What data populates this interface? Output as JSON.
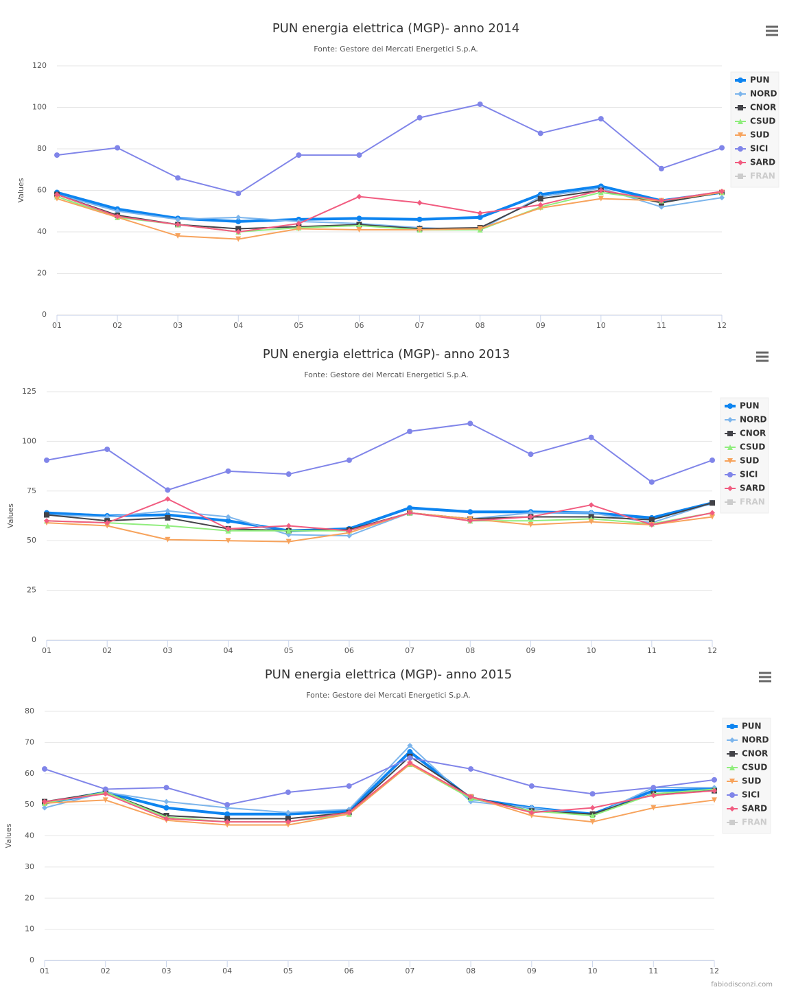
{
  "chart_data": [
    {
      "type": "line",
      "title": "PUN energia elettrica (MGP)- anno 2014",
      "subtitle": "Fonte: Gestore dei Mercati Energetici S.p.A.",
      "y_label": "Values",
      "categories": [
        "01",
        "02",
        "03",
        "04",
        "05",
        "06",
        "07",
        "08",
        "09",
        "10",
        "11",
        "12"
      ],
      "ylim": [
        0,
        120
      ],
      "yticks": [
        0,
        20,
        40,
        60,
        80,
        100,
        120
      ],
      "grid": true,
      "legend": "right",
      "series": [
        {
          "name": "PUN",
          "color": "#0d84f0",
          "marker": "circle",
          "line_width": 4,
          "values": [
            59,
            51,
            46.5,
            45,
            46,
            46.5,
            46,
            47,
            58,
            62,
            55,
            59
          ]
        },
        {
          "name": "NORD",
          "color": "#7cb5ec",
          "marker": "diamond",
          "values": [
            58,
            50,
            46,
            47,
            45,
            44,
            42,
            41,
            57,
            61,
            52,
            56.5
          ]
        },
        {
          "name": "CNOR",
          "color": "#434348",
          "marker": "square",
          "values": [
            58,
            48,
            43.5,
            41.5,
            42.5,
            43.5,
            41.5,
            42,
            56,
            60,
            54,
            59
          ]
        },
        {
          "name": "CSUD",
          "color": "#90ed7d",
          "marker": "triangle",
          "values": [
            57,
            47,
            43.5,
            40,
            42,
            43,
            41,
            41,
            52,
            59,
            55,
            59
          ]
        },
        {
          "name": "SUD",
          "color": "#f7a35c",
          "marker": "triangle-down",
          "values": [
            56,
            47,
            38,
            36.5,
            41.5,
            41,
            41,
            41.5,
            51.5,
            56,
            55,
            59
          ]
        },
        {
          "name": "SICI",
          "color": "#8085e9",
          "marker": "circle",
          "values": [
            77,
            80.5,
            66,
            58.5,
            77,
            77,
            95,
            101.5,
            87.5,
            94.5,
            70.5,
            80.5
          ]
        },
        {
          "name": "SARD",
          "color": "#f15c80",
          "marker": "diamond",
          "values": [
            58,
            47.5,
            43.5,
            40,
            44,
            57,
            54,
            49,
            53,
            60,
            55,
            59.5
          ]
        },
        {
          "name": "FRAN",
          "color": "#cccccc",
          "marker": "square",
          "visible": false,
          "values": [
            null,
            null,
            null,
            null,
            null,
            null,
            null,
            null,
            null,
            null,
            null,
            null
          ]
        }
      ]
    },
    {
      "type": "line",
      "title": "PUN energia elettrica (MGP)- anno 2013",
      "subtitle": "Fonte: Gestore dei Mercati Energetici S.p.A.",
      "y_label": "Values",
      "categories": [
        "01",
        "02",
        "03",
        "04",
        "05",
        "06",
        "07",
        "08",
        "09",
        "10",
        "11",
        "12"
      ],
      "ylim": [
        0,
        125
      ],
      "yticks": [
        0,
        25,
        50,
        75,
        100,
        125
      ],
      "grid": true,
      "legend": "right",
      "series": [
        {
          "name": "PUN",
          "color": "#0d84f0",
          "marker": "circle",
          "line_width": 4,
          "values": [
            64,
            62.5,
            63,
            60,
            55,
            56,
            66.5,
            64.5,
            64.5,
            64,
            61.5,
            69
          ]
        },
        {
          "name": "NORD",
          "color": "#7cb5ec",
          "marker": "diamond",
          "values": [
            63,
            62,
            65,
            62,
            53,
            52.5,
            64,
            61,
            64,
            64,
            59,
            69
          ]
        },
        {
          "name": "CNOR",
          "color": "#434348",
          "marker": "square",
          "values": [
            63,
            60,
            61.5,
            56,
            55,
            55.5,
            64,
            61,
            62,
            62,
            60.5,
            69
          ]
        },
        {
          "name": "CSUD",
          "color": "#90ed7d",
          "marker": "triangle",
          "values": [
            60,
            59,
            57.5,
            55,
            55,
            55,
            64,
            60,
            60,
            61,
            58.5,
            64
          ]
        },
        {
          "name": "SUD",
          "color": "#f7a35c",
          "marker": "triangle-down",
          "values": [
            59,
            57.5,
            50.5,
            50,
            49.5,
            54,
            64,
            61,
            58,
            59.5,
            58,
            62
          ]
        },
        {
          "name": "SICI",
          "color": "#8085e9",
          "marker": "circle",
          "values": [
            90.5,
            96,
            75.5,
            85,
            83.5,
            90.5,
            105,
            109,
            93.5,
            102,
            79.5,
            90.5
          ]
        },
        {
          "name": "SARD",
          "color": "#f15c80",
          "marker": "diamond",
          "values": [
            60,
            59,
            71,
            56,
            57.5,
            55,
            64,
            60,
            62,
            68,
            58,
            64
          ]
        },
        {
          "name": "FRAN",
          "color": "#cccccc",
          "marker": "square",
          "visible": false,
          "values": [
            null,
            null,
            null,
            null,
            null,
            null,
            null,
            null,
            null,
            null,
            null,
            null
          ]
        }
      ]
    },
    {
      "type": "line",
      "title": "PUN energia elettrica (MGP)- anno 2015",
      "subtitle": "Fonte: Gestore dei Mercati Energetici S.p.A.",
      "y_label": "Values",
      "categories": [
        "01",
        "02",
        "03",
        "04",
        "05",
        "06",
        "07",
        "08",
        "09",
        "10",
        "11",
        "12"
      ],
      "ylim": [
        0,
        80
      ],
      "yticks": [
        0,
        10,
        20,
        30,
        40,
        50,
        60,
        70,
        80
      ],
      "grid": true,
      "legend": "right",
      "series": [
        {
          "name": "PUN",
          "color": "#0d84f0",
          "marker": "circle",
          "line_width": 4,
          "values": [
            50.5,
            54,
            49,
            47,
            47,
            48,
            67,
            52,
            49,
            47,
            54.5,
            55
          ]
        },
        {
          "name": "NORD",
          "color": "#7cb5ec",
          "marker": "diamond",
          "values": [
            49,
            54,
            51,
            49,
            47.5,
            48.5,
            69,
            51,
            49,
            46.5,
            55.5,
            55.5
          ]
        },
        {
          "name": "CNOR",
          "color": "#434348",
          "marker": "square",
          "values": [
            51,
            54,
            46.5,
            45.5,
            45.5,
            47.5,
            65.5,
            52.5,
            48,
            47,
            53.5,
            54.5
          ]
        },
        {
          "name": "CSUD",
          "color": "#90ed7d",
          "marker": "triangle",
          "values": [
            50.5,
            54,
            46,
            44.5,
            44.5,
            47,
            63,
            52,
            48,
            46.5,
            53.5,
            55
          ]
        },
        {
          "name": "SUD",
          "color": "#f7a35c",
          "marker": "triangle-down",
          "values": [
            50.5,
            51.5,
            45,
            43.5,
            43.5,
            47,
            63,
            52.5,
            46.5,
            44.5,
            49,
            51.5
          ]
        },
        {
          "name": "SICI",
          "color": "#8085e9",
          "marker": "circle",
          "values": [
            61.5,
            55,
            55.5,
            50,
            54,
            56,
            65,
            61.5,
            56,
            53.5,
            55.5,
            58
          ]
        },
        {
          "name": "SARD",
          "color": "#f15c80",
          "marker": "diamond",
          "values": [
            51,
            53.5,
            45.5,
            44.5,
            44.5,
            47.5,
            63.5,
            52.5,
            47.5,
            49,
            53,
            54.5
          ]
        },
        {
          "name": "FRAN",
          "color": "#cccccc",
          "marker": "square",
          "visible": false,
          "values": [
            null,
            null,
            null,
            null,
            null,
            null,
            null,
            null,
            null,
            null,
            null,
            null
          ]
        }
      ]
    }
  ],
  "credit": "fabiodisconzi.com"
}
